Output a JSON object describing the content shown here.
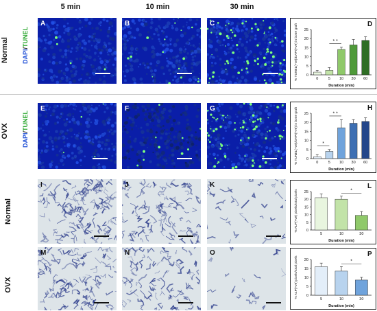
{
  "columns": [
    "5 min",
    "10 min",
    "30 min"
  ],
  "rows": {
    "normal": "Normal",
    "ovx": "OVX",
    "alp_normal": "Normal",
    "alp_ovx": "OVX"
  },
  "stain": {
    "dapi": "DAPI",
    "slash": "/",
    "tunel": "TUNEL"
  },
  "panels": {
    "A": "A",
    "B": "B",
    "C": "C",
    "D": "D",
    "E": "E",
    "F": "F",
    "G": "G",
    "H": "H",
    "I": "I",
    "J": "J",
    "K": "K",
    "L": "L",
    "M": "M",
    "N": "N",
    "O": "O",
    "P": "P"
  },
  "colors": {
    "dapi_blue": "#0a1ea8",
    "tunel_green": "#7dff7d",
    "alp_bg": "#dde4e8",
    "alp_stain": "#2a3a8a"
  },
  "chart_data": [
    {
      "panel": "D",
      "type": "bar",
      "categories": [
        "0",
        "5",
        "10",
        "30",
        "60"
      ],
      "values": [
        1.5,
        2.5,
        14,
        16.5,
        19
      ],
      "errors": [
        1,
        1.5,
        1.2,
        3,
        2
      ],
      "colors": [
        "#e8f5df",
        "#c2e3a8",
        "#8fc96a",
        "#4f9a3a",
        "#2f6e25"
      ],
      "xlabel": "Duration (min)",
      "ylabel": "% TUNEL(+ve)/DAPI(+ve) in bone graft",
      "yticks": [
        0,
        5,
        10,
        15,
        20,
        25
      ],
      "ylim": [
        0,
        25
      ],
      "significance": [
        {
          "from": 1,
          "to": 2,
          "label": "* *"
        }
      ]
    },
    {
      "panel": "H",
      "type": "bar",
      "categories": [
        "0",
        "5",
        "10",
        "30",
        "60"
      ],
      "values": [
        1,
        4,
        17,
        19.5,
        20.5
      ],
      "errors": [
        1.2,
        1,
        4.5,
        2,
        2
      ],
      "colors": [
        "#e3eef9",
        "#b8d3ee",
        "#6fa3dc",
        "#3d6fb3",
        "#23468a"
      ],
      "xlabel": "Duration (min)",
      "ylabel": "% TUNEL(+ve)/DAPI(+ve) in bone graft",
      "yticks": [
        0,
        5,
        10,
        15,
        20,
        25
      ],
      "ylim": [
        0,
        25
      ],
      "significance": [
        {
          "from": 0,
          "to": 1,
          "label": "*"
        },
        {
          "from": 1,
          "to": 2,
          "label": "* *"
        }
      ]
    },
    {
      "panel": "L",
      "type": "bar",
      "categories": [
        "5",
        "10",
        "30"
      ],
      "values": [
        21,
        20,
        9.5
      ],
      "errors": [
        2.5,
        2,
        2.5
      ],
      "colors": [
        "#e8f5df",
        "#c2e3a8",
        "#8fc96a"
      ],
      "xlabel": "Duration (min)",
      "ylabel": "% ALP(+ve) pixels/total pixels",
      "yticks": [
        0,
        5,
        10,
        15,
        20,
        25
      ],
      "ylim": [
        0,
        25
      ],
      "significance": [
        {
          "from": 1,
          "to": 2,
          "label": "*"
        }
      ]
    },
    {
      "panel": "P",
      "type": "bar",
      "categories": [
        "5",
        "10",
        "30"
      ],
      "values": [
        16,
        13.5,
        8.5
      ],
      "errors": [
        2,
        2.5,
        1.5
      ],
      "colors": [
        "#e3eef9",
        "#b8d3ee",
        "#6fa3dc"
      ],
      "xlabel": "Duration (min)",
      "ylabel": "% ALP(+ve) pixels/total pixels",
      "yticks": [
        0,
        5,
        10,
        15,
        20
      ],
      "ylim": [
        0,
        20
      ],
      "significance": [
        {
          "from": 1,
          "to": 2,
          "label": "*"
        }
      ]
    }
  ]
}
